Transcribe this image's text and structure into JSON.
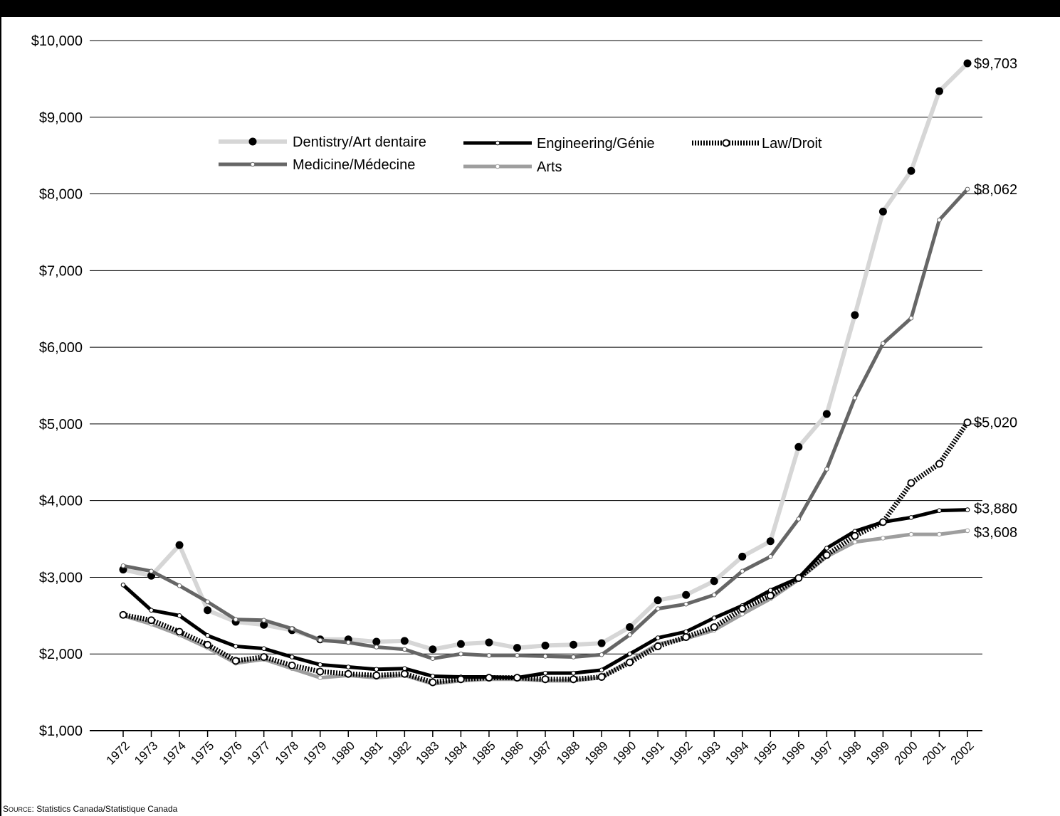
{
  "source": {
    "label_first": "S",
    "label_rest": "OURCE",
    "text": ": Statistics Canada/Statistique Canada"
  },
  "chart_data": {
    "type": "line",
    "x": [
      "1972",
      "1973",
      "1974",
      "1975",
      "1976",
      "1977",
      "1978",
      "1979",
      "1980",
      "1981",
      "1982",
      "1983",
      "1984",
      "1985",
      "1986",
      "1987",
      "1988",
      "1989",
      "1990",
      "1991",
      "1992",
      "1993",
      "1994",
      "1995",
      "1996",
      "1997",
      "1998",
      "1999",
      "2000",
      "2001",
      "2002"
    ],
    "ylim": [
      1000,
      10000
    ],
    "yticks": [
      1000,
      2000,
      3000,
      4000,
      5000,
      6000,
      7000,
      8000,
      9000,
      10000
    ],
    "ytick_labels": [
      "$1,000",
      "$2,000",
      "$3,000",
      "$4,000",
      "$5,000",
      "$6,000",
      "$7,000",
      "$8,000",
      "$9,000",
      "$10,000"
    ],
    "grid": true,
    "legend_position": "top-left",
    "series": [
      {
        "name": "Dentistry/Art dentaire",
        "color": "#d6d6d6",
        "marker_color": "#000000",
        "marker": "filled-dot",
        "style": "solid",
        "values": [
          3100,
          3020,
          3420,
          2570,
          2420,
          2380,
          2310,
          2190,
          2190,
          2160,
          2170,
          2060,
          2130,
          2150,
          2080,
          2110,
          2120,
          2140,
          2350,
          2700,
          2770,
          2950,
          3270,
          3470,
          4700,
          5130,
          6420,
          7770,
          8300,
          9340,
          9703
        ],
        "end_label": "$9,703"
      },
      {
        "name": "Engineering/Génie",
        "color": "#000000",
        "marker_color": "#ffffff",
        "marker": "small-hollow",
        "style": "solid",
        "values": [
          2900,
          2570,
          2500,
          2240,
          2100,
          2070,
          1960,
          1860,
          1830,
          1800,
          1810,
          1710,
          1700,
          1700,
          1690,
          1750,
          1750,
          1790,
          2000,
          2210,
          2290,
          2470,
          2630,
          2830,
          2990,
          3380,
          3600,
          3720,
          3780,
          3870,
          3880
        ],
        "end_label": "$3,880"
      },
      {
        "name": "Law/Droit",
        "color": "#000000",
        "marker_color": "#ffffff",
        "marker": "hollow-circle",
        "style": "dotted",
        "values": [
          2510,
          2440,
          2290,
          2120,
          1910,
          1960,
          1850,
          1770,
          1740,
          1720,
          1740,
          1630,
          1670,
          1690,
          1690,
          1670,
          1670,
          1700,
          1890,
          2100,
          2220,
          2350,
          2590,
          2760,
          2990,
          3290,
          3540,
          3720,
          4230,
          4480,
          5020
        ],
        "end_label": "$5,020"
      },
      {
        "name": "Medicine/Médecine",
        "color": "#666666",
        "marker_color": "#ffffff",
        "marker": "small-hollow",
        "style": "solid",
        "values": [
          3150,
          3080,
          2890,
          2680,
          2450,
          2440,
          2330,
          2180,
          2150,
          2090,
          2060,
          1940,
          2000,
          1980,
          1980,
          1970,
          1960,
          1990,
          2250,
          2590,
          2650,
          2770,
          3080,
          3270,
          3760,
          4410,
          5340,
          6050,
          6380,
          7660,
          8062
        ],
        "end_label": "$8,062"
      },
      {
        "name": "Arts",
        "color": "#9e9e9e",
        "marker_color": "#ffffff",
        "marker": "small-hollow",
        "style": "solid",
        "values": [
          2500,
          2390,
          2250,
          2080,
          1880,
          1930,
          1810,
          1690,
          1720,
          1690,
          1720,
          1610,
          1650,
          1670,
          1670,
          1650,
          1650,
          1690,
          1910,
          2130,
          2200,
          2310,
          2520,
          2720,
          2970,
          3270,
          3460,
          3510,
          3560,
          3560,
          3608
        ],
        "end_label": "$3,608"
      }
    ]
  }
}
